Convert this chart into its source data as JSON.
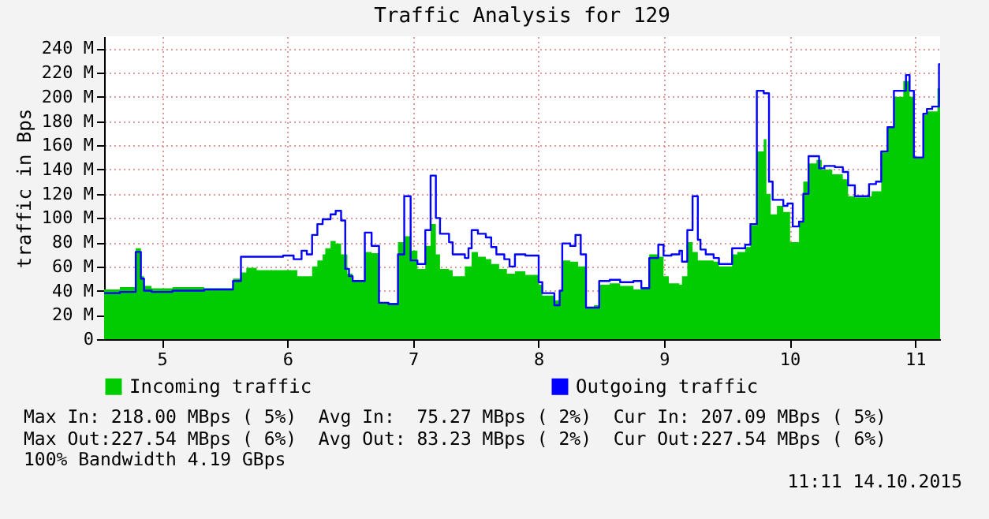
{
  "chart_data": {
    "type": "area",
    "title": "Traffic Analysis for 129",
    "ylabel": "traffic in Bps",
    "x": [
      4.54,
      4.666,
      4.792,
      4.833,
      4.858,
      4.918,
      5.085,
      5.337,
      5.567,
      5.63,
      5.673,
      5.756,
      5.966,
      6.05,
      6.079,
      6.113,
      6.155,
      6.197,
      6.239,
      6.281,
      6.302,
      6.344,
      6.385,
      6.428,
      6.461,
      6.478,
      6.491,
      6.52,
      6.617,
      6.671,
      6.73,
      6.806,
      6.881,
      6.931,
      6.982,
      7.036,
      7.099,
      7.141,
      7.183,
      7.216,
      7.288,
      7.317,
      7.414,
      7.443,
      7.468,
      7.518,
      7.581,
      7.624,
      7.665,
      7.687,
      7.728,
      7.749,
      7.77,
      7.813,
      7.896,
      8.002,
      8.031,
      8.127,
      8.169,
      8.19,
      8.253,
      8.295,
      8.316,
      8.337,
      8.379,
      8.442,
      8.484,
      8.568,
      8.651,
      8.757,
      8.82,
      8.883,
      8.955,
      8.997,
      9.039,
      9.06,
      9.123,
      9.144,
      9.186,
      9.228,
      9.27,
      9.291,
      9.333,
      9.396,
      9.438,
      9.543,
      9.585,
      9.647,
      9.689,
      9.74,
      9.795,
      9.816,
      9.837,
      9.85,
      9.866,
      9.9,
      9.951,
      9.984,
      10.005,
      10.026,
      10.076,
      10.11,
      10.152,
      10.215,
      10.236,
      10.257,
      10.278,
      10.341,
      10.362,
      10.425,
      10.467,
      10.521,
      10.634,
      10.655,
      10.689,
      10.731,
      10.781,
      10.832,
      10.907,
      10.928,
      10.957,
      10.991,
      11.066,
      11.095,
      11.137,
      11.179,
      11.191,
      11.2
    ],
    "series": [
      {
        "name": "Incoming traffic",
        "type": "area",
        "color": "#00cc00",
        "values": [
          41,
          43,
          75,
          52,
          44,
          42,
          43,
          42,
          50,
          55,
          59,
          57,
          57,
          57,
          52,
          52,
          52,
          60,
          65,
          70,
          75,
          81,
          79,
          70,
          70,
          54,
          54,
          48,
          72,
          71,
          30,
          30,
          80,
          85,
          73,
          58,
          77,
          95,
          70,
          58,
          57,
          52,
          60,
          60,
          72,
          68,
          66,
          62,
          62,
          58,
          58,
          54,
          54,
          56,
          53,
          45,
          36,
          32,
          40,
          65,
          64,
          64,
          60,
          60,
          26,
          28,
          45,
          46,
          44,
          41,
          43,
          70,
          68,
          52,
          46,
          46,
          45,
          52,
          80,
          72,
          65,
          65,
          65,
          64,
          60,
          70,
          72,
          76,
          94,
          155,
          165,
          120,
          120,
          103,
          103,
          110,
          105,
          105,
          80,
          80,
          97,
          130,
          145,
          148,
          148,
          140,
          140,
          136,
          136,
          132,
          118,
          117,
          118,
          122,
          122,
          155,
          175,
          200,
          213,
          213,
          200,
          150,
          185,
          188,
          188,
          207,
          207,
          207
        ]
      },
      {
        "name": "Outgoing traffic",
        "type": "step",
        "color": "#0000ff",
        "values": [
          38,
          39,
          72,
          50,
          40,
          39,
          40,
          41,
          48,
          68,
          68,
          68,
          69,
          66,
          66,
          73,
          70,
          86,
          95,
          99,
          99,
          103,
          106,
          98,
          58,
          58,
          52,
          48,
          88,
          77,
          30,
          29,
          70,
          118,
          65,
          62,
          90,
          135,
          100,
          87,
          80,
          70,
          67,
          75,
          90,
          87,
          84,
          76,
          70,
          70,
          66,
          66,
          60,
          70,
          69,
          47,
          38,
          28,
          40,
          79,
          77,
          86,
          86,
          70,
          26,
          26,
          48,
          49,
          47,
          48,
          42,
          67,
          78,
          69,
          69,
          70,
          73,
          64,
          90,
          118,
          82,
          74,
          70,
          67,
          62,
          75,
          75,
          78,
          95,
          205,
          203,
          203,
          130,
          130,
          115,
          115,
          110,
          112,
          112,
          93,
          97,
          120,
          151,
          151,
          141,
          141,
          143,
          143,
          142,
          138,
          127,
          118,
          128,
          128,
          130,
          155,
          175,
          205,
          205,
          218,
          205,
          150,
          186,
          190,
          192,
          192,
          227,
          227
        ]
      }
    ],
    "xlim": [
      4.54,
      11.2
    ],
    "xticks": [
      5,
      6,
      7,
      8,
      9,
      10,
      11
    ],
    "ylim": [
      0,
      250
    ],
    "yticks": [
      0,
      {
        "value": 20,
        "label": "20 M"
      },
      {
        "value": 40,
        "label": "40 M"
      },
      {
        "value": 60,
        "label": "60 M"
      },
      {
        "value": 80,
        "label": "80 M"
      },
      {
        "value": 100,
        "label": "100 M"
      },
      {
        "value": 120,
        "label": "120 M"
      },
      {
        "value": 140,
        "label": "140 M"
      },
      {
        "value": 160,
        "label": "160 M"
      },
      {
        "value": 180,
        "label": "180 M"
      },
      {
        "value": 200,
        "label": "200 M"
      },
      {
        "value": 220,
        "label": "220 M"
      },
      {
        "value": 240,
        "label": "240 M"
      }
    ],
    "grid": true,
    "legend": "bottom",
    "annotations": [
      "Max In: 218.00 MBps ( 5%)  Avg In:  75.27 MBps ( 2%)  Cur In: 207.09 MBps ( 5%)",
      "Max Out:227.54 MBps ( 6%)  Avg Out: 83.23 MBps ( 2%)  Cur Out:227.54 MBps ( 6%)",
      "100% Bandwidth 4.19 GBps",
      "11:11 14.10.2015"
    ]
  }
}
